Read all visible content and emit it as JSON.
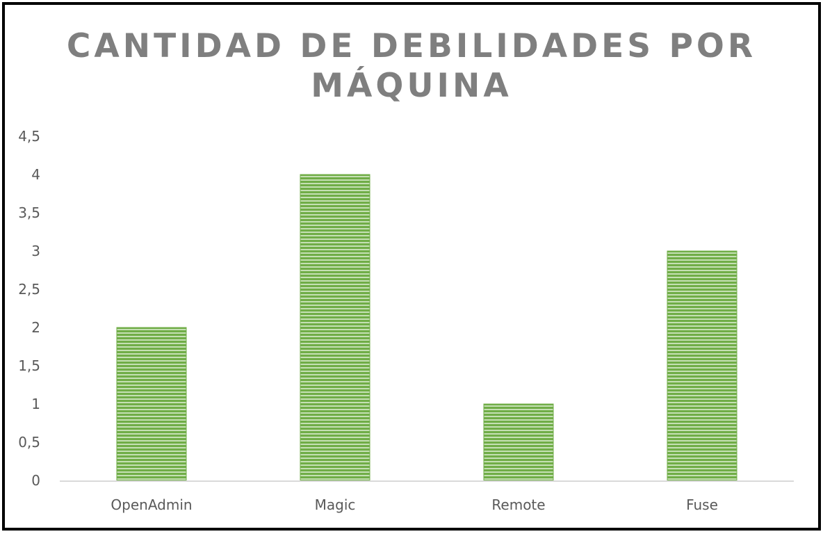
{
  "chart_data": {
    "type": "bar",
    "title": "CANTIDAD DE DEBILIDADES POR MÁQUINA",
    "title_lines": [
      "CANTIDAD DE DEBILIDADES POR",
      "MÁQUINA"
    ],
    "categories": [
      "OpenAdmin",
      "Magic",
      "Remote",
      "Fuse"
    ],
    "values": [
      2,
      4,
      1,
      3
    ],
    "ylim": [
      0,
      4.5
    ],
    "yticks": [
      0,
      0.5,
      1,
      1.5,
      2,
      2.5,
      3,
      3.5,
      4,
      4.5
    ],
    "ytick_labels": [
      "0",
      "0,5",
      "1",
      "1,5",
      "2",
      "2,5",
      "3",
      "3,5",
      "4",
      "4,5"
    ],
    "grid": false,
    "legend": "none",
    "colors": {
      "bar_fill": "#70ad47",
      "bar_stripe_light": "#c5e0b4",
      "title": "#7f7f7f",
      "axis": "#d9d9d9",
      "labels": "#595959",
      "frame": "#000000"
    }
  }
}
